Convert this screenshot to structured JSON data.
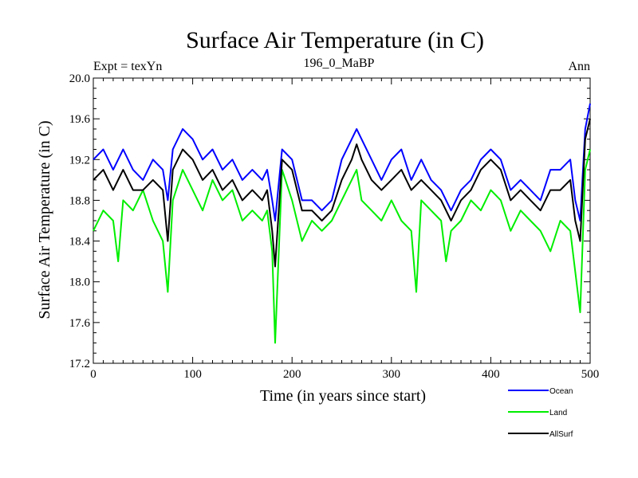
{
  "chart_data": {
    "type": "line",
    "title": "Surface Air Temperature (in C)",
    "subtitle_left": "Expt = texYn",
    "subtitle_center": "196_0_MaBP",
    "subtitle_right": "Ann",
    "xlabel": "Time (in years since start)",
    "ylabel": "Surface Air Temperature (in C)",
    "xlim": [
      0,
      500
    ],
    "ylim": [
      17.2,
      20.0
    ],
    "x_ticks": [
      0,
      100,
      200,
      300,
      400,
      500
    ],
    "x_tick_labels": [
      "0",
      "100",
      "200",
      "300",
      "400",
      "500"
    ],
    "y_ticks": [
      17.2,
      17.6,
      18.0,
      18.4,
      18.8,
      19.2,
      19.6,
      20.0
    ],
    "y_tick_labels": [
      "17.2",
      "17.6",
      "18.0",
      "18.4",
      "18.8",
      "19.2",
      "19.6",
      "20.0"
    ],
    "grid": false,
    "legend_position": "bottom-right",
    "series": [
      {
        "name": "Ocean",
        "color": "#0000ff",
        "x": [
          0,
          10,
          20,
          30,
          40,
          50,
          60,
          70,
          75,
          80,
          90,
          100,
          110,
          120,
          130,
          140,
          150,
          160,
          170,
          175,
          180,
          183,
          190,
          200,
          210,
          220,
          230,
          240,
          250,
          260,
          265,
          270,
          280,
          290,
          300,
          310,
          320,
          330,
          340,
          350,
          360,
          370,
          380,
          390,
          400,
          410,
          420,
          430,
          440,
          450,
          460,
          470,
          480,
          485,
          490,
          495,
          500
        ],
        "values": [
          19.2,
          19.3,
          19.1,
          19.3,
          19.1,
          19.0,
          19.2,
          19.1,
          18.8,
          19.3,
          19.5,
          19.4,
          19.2,
          19.3,
          19.1,
          19.2,
          19.0,
          19.1,
          19.0,
          19.1,
          18.8,
          18.6,
          19.3,
          19.2,
          18.8,
          18.8,
          18.7,
          18.8,
          19.2,
          19.4,
          19.5,
          19.4,
          19.2,
          19.0,
          19.2,
          19.3,
          19.0,
          19.2,
          19.0,
          18.9,
          18.7,
          18.9,
          19.0,
          19.2,
          19.3,
          19.2,
          18.9,
          19.0,
          18.9,
          18.8,
          19.1,
          19.1,
          19.2,
          18.8,
          18.6,
          19.5,
          19.75
        ]
      },
      {
        "name": "Land",
        "color": "#00ee00",
        "x": [
          0,
          10,
          20,
          25,
          30,
          40,
          50,
          60,
          70,
          75,
          80,
          90,
          100,
          110,
          120,
          130,
          140,
          150,
          160,
          170,
          175,
          180,
          183,
          190,
          200,
          210,
          220,
          230,
          240,
          250,
          260,
          265,
          270,
          280,
          290,
          300,
          310,
          320,
          325,
          330,
          340,
          350,
          355,
          360,
          370,
          380,
          390,
          400,
          410,
          420,
          430,
          440,
          450,
          460,
          470,
          480,
          485,
          490,
          495,
          500
        ],
        "values": [
          18.5,
          18.7,
          18.6,
          18.2,
          18.8,
          18.7,
          18.9,
          18.6,
          18.4,
          17.9,
          18.8,
          19.1,
          18.9,
          18.7,
          19.0,
          18.8,
          18.9,
          18.6,
          18.7,
          18.6,
          18.7,
          18.3,
          17.4,
          19.1,
          18.8,
          18.4,
          18.6,
          18.5,
          18.6,
          18.8,
          19.0,
          19.1,
          18.8,
          18.7,
          18.6,
          18.8,
          18.6,
          18.5,
          17.9,
          18.8,
          18.7,
          18.6,
          18.2,
          18.5,
          18.6,
          18.8,
          18.7,
          18.9,
          18.8,
          18.5,
          18.7,
          18.6,
          18.5,
          18.3,
          18.6,
          18.5,
          18.1,
          17.7,
          19.1,
          19.3
        ]
      },
      {
        "name": "AllSurf",
        "color": "#000000",
        "x": [
          0,
          10,
          20,
          30,
          40,
          50,
          60,
          70,
          75,
          80,
          90,
          100,
          110,
          120,
          130,
          140,
          150,
          160,
          170,
          175,
          180,
          183,
          190,
          200,
          210,
          220,
          230,
          240,
          250,
          260,
          265,
          270,
          280,
          290,
          300,
          310,
          320,
          330,
          340,
          350,
          360,
          370,
          380,
          390,
          400,
          410,
          420,
          430,
          440,
          450,
          460,
          470,
          480,
          485,
          490,
          495,
          500
        ],
        "values": [
          19.0,
          19.1,
          18.9,
          19.1,
          18.9,
          18.9,
          19.0,
          18.9,
          18.4,
          19.1,
          19.3,
          19.2,
          19.0,
          19.1,
          18.9,
          19.0,
          18.8,
          18.9,
          18.8,
          18.9,
          18.5,
          18.15,
          19.2,
          19.1,
          18.7,
          18.7,
          18.6,
          18.7,
          19.0,
          19.2,
          19.35,
          19.2,
          19.0,
          18.9,
          19.0,
          19.1,
          18.9,
          19.0,
          18.9,
          18.8,
          18.6,
          18.8,
          18.9,
          19.1,
          19.2,
          19.1,
          18.8,
          18.9,
          18.8,
          18.7,
          18.9,
          18.9,
          19.0,
          18.6,
          18.4,
          19.4,
          19.6
        ]
      }
    ]
  }
}
